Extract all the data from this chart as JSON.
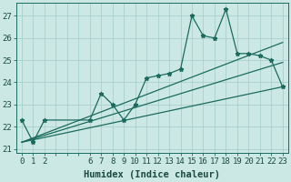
{
  "xlabel": "Humidex (Indice chaleur)",
  "background_color": "#cce8e4",
  "line_color": "#1a6b5e",
  "grid_color": "#aacfca",
  "x_data": [
    0,
    1,
    2,
    6,
    7,
    8,
    9,
    10,
    11,
    12,
    13,
    14,
    15,
    16,
    17,
    18,
    19,
    20,
    21,
    22,
    23
  ],
  "y_data": [
    22.3,
    21.3,
    22.3,
    22.3,
    23.5,
    23.0,
    22.3,
    23.0,
    24.2,
    24.3,
    24.4,
    24.6,
    27.0,
    26.1,
    26.0,
    27.3,
    25.3,
    25.3,
    25.2,
    25.0,
    23.8
  ],
  "trend1_x": [
    0,
    23
  ],
  "trend1_y": [
    21.3,
    25.8
  ],
  "trend2_x": [
    0,
    23
  ],
  "trend2_y": [
    21.3,
    24.9
  ],
  "trend3_x": [
    0,
    23
  ],
  "trend3_y": [
    21.3,
    23.8
  ],
  "xlim": [
    -0.5,
    23.5
  ],
  "ylim": [
    20.8,
    27.6
  ],
  "yticks": [
    21,
    22,
    23,
    24,
    25,
    26,
    27
  ],
  "xtick_labels": [
    "0",
    "1",
    "2",
    "",
    "",
    "",
    "6",
    "7",
    "8",
    "9",
    "10",
    "11",
    "12",
    "13",
    "14",
    "15",
    "16",
    "17",
    "18",
    "19",
    "20",
    "21",
    "22",
    "23"
  ],
  "xtick_positions": [
    0,
    1,
    2,
    3,
    4,
    5,
    6,
    7,
    8,
    9,
    10,
    11,
    12,
    13,
    14,
    15,
    16,
    17,
    18,
    19,
    20,
    21,
    22,
    23
  ],
  "tick_color": "#1a4a40",
  "label_fontsize": 6.5,
  "xlabel_fontsize": 7.5
}
